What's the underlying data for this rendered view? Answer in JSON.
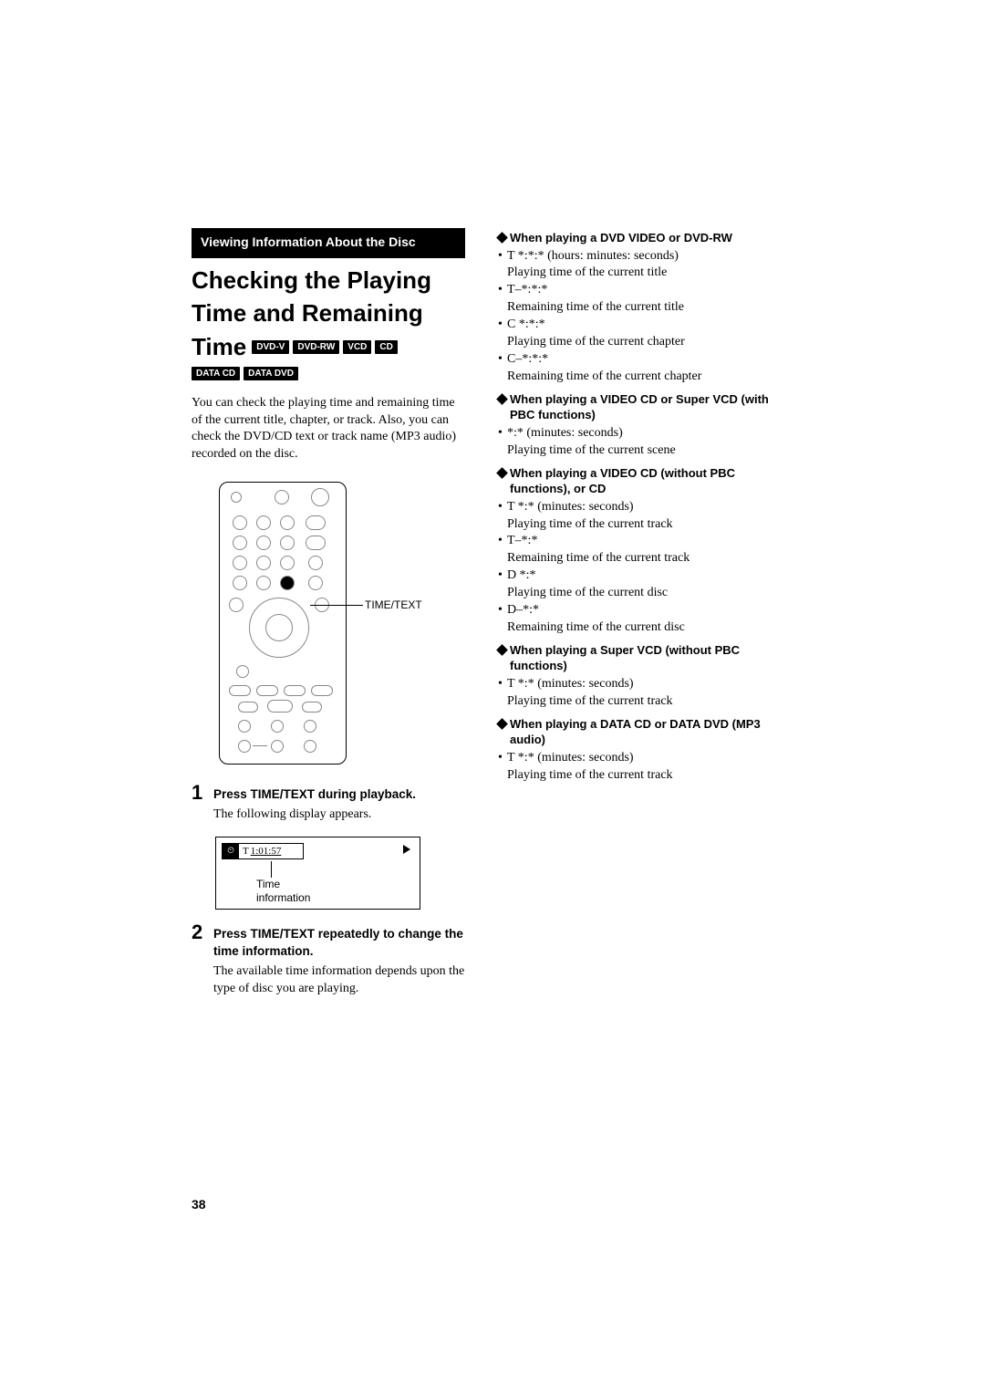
{
  "section_header": "Viewing Information About the Disc",
  "title_line1": "Checking the Playing",
  "title_line2": "Time and Remaining",
  "title_line3_word": "Time",
  "badges_row1": [
    "DVD-V",
    "DVD-RW",
    "VCD",
    "CD"
  ],
  "badges_row2": [
    "DATA CD",
    "DATA DVD"
  ],
  "intro": "You can check the playing time and remaining time of the current title, chapter, or track. Also, you can check the DVD/CD text or track name (MP3 audio) recorded on the disc.",
  "remote_label": "TIME/TEXT",
  "steps": [
    {
      "num": "1",
      "head": "Press TIME/TEXT during playback.",
      "text": "The following display appears."
    },
    {
      "num": "2",
      "head": "Press TIME/TEXT repeatedly to change the time information.",
      "text": "The available time information depends upon the type of disc you are playing."
    }
  ],
  "display": {
    "clock_glyph": "⏲",
    "t": "T",
    "time": "1:01:57",
    "caption1": "Time",
    "caption2": "information"
  },
  "right": [
    {
      "heading": "When playing a DVD VIDEO or DVD-RW",
      "items": [
        {
          "code": "T  *:*:* (hours: minutes: seconds)",
          "desc": "Playing time of the current title"
        },
        {
          "code": "T–*:*:*",
          "desc": "Remaining time of the current title"
        },
        {
          "code": "C  *:*:*",
          "desc": "Playing time of the current chapter"
        },
        {
          "code": "C–*:*:*",
          "desc": "Remaining time of the current chapter"
        }
      ]
    },
    {
      "heading": "When playing a VIDEO CD or Super VCD (with PBC functions)",
      "items": [
        {
          "code": "*:* (minutes: seconds)",
          "desc": "Playing time of the current scene"
        }
      ]
    },
    {
      "heading": "When playing a VIDEO CD (without PBC functions),  or CD",
      "items": [
        {
          "code": "T  *:* (minutes: seconds)",
          "desc": "Playing time of the current track"
        },
        {
          "code": "T–*:*",
          "desc": "Remaining time of the current track"
        },
        {
          "code": "D  *:*",
          "desc": "Playing time of the current disc"
        },
        {
          "code": "D–*:*",
          "desc": "Remaining time of the current disc"
        }
      ]
    },
    {
      "heading": "When playing a Super VCD (without PBC functions)",
      "items": [
        {
          "code": "T *:* (minutes: seconds)",
          "desc": "Playing time of the current track"
        }
      ]
    },
    {
      "heading": "When playing a DATA CD or DATA DVD (MP3 audio)",
      "items": [
        {
          "code": "T *:* (minutes: seconds)",
          "desc": "Playing time of the current track"
        }
      ]
    }
  ],
  "page_number": "38"
}
